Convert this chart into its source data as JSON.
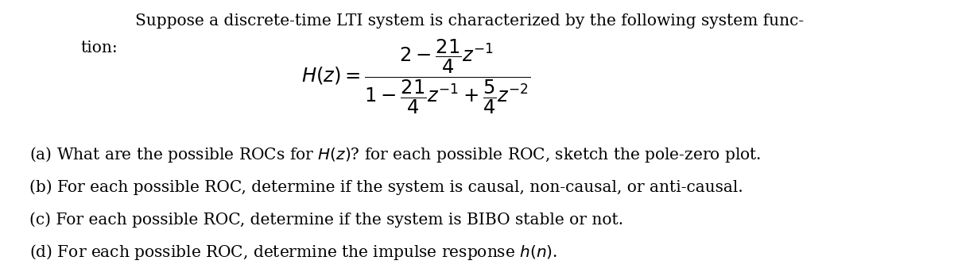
{
  "background_color": "#ffffff",
  "figsize": [
    12.0,
    3.43
  ],
  "dpi": 100,
  "title_line1": "Suppose a discrete-time LTI system is characterized by the following system func-",
  "title_line2": "tion:",
  "formula_lhs": "$H(z) = $",
  "formula_num": "$2 - \\dfrac{21}{4}z^{-1}$",
  "formula_den": "$1 - \\dfrac{21}{4}z^{-1} + \\dfrac{5}{4}z^{-2}$",
  "line_a": "(a) What are the possible ROCs for $H(z)$? for each possible ROC, sketch the pole-zero plot.",
  "line_b": "(b) For each possible ROC, determine if the system is causal, non-causal, or anti-causal.",
  "line_c": "(c) For each possible ROC, determine if the system is BIBO stable or not.",
  "line_d": "(d) For each possible ROC, determine the impulse response $h(n)$.",
  "text_color": "#000000",
  "font_size": 14.5
}
